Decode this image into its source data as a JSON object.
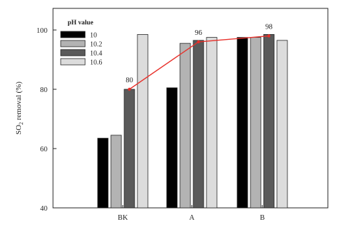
{
  "chart_data": {
    "type": "bar",
    "categories": [
      "BK",
      "A",
      "B"
    ],
    "series": [
      {
        "name": "10",
        "values": [
          63.5,
          80.5,
          97.5
        ],
        "color": "#000000"
      },
      {
        "name": "10.2",
        "values": [
          64.5,
          95.5,
          97.5
        ],
        "color": "#b3b3b3"
      },
      {
        "name": "10.4",
        "values": [
          80,
          96.5,
          98.5
        ],
        "color": "#5a5a5a"
      },
      {
        "name": "10.6",
        "values": [
          98.5,
          97.5,
          96.5
        ],
        "color": "#dcdcdc"
      }
    ],
    "overlay_line": {
      "series_index": 2,
      "values": [
        80,
        96,
        98
      ],
      "labels": [
        "80",
        "96",
        "98"
      ],
      "color": "#e8302a"
    },
    "legend_title": "pH value",
    "legend_position": "top-left",
    "ylabel": "SO2 removal (%)",
    "ylabel_main": "SO",
    "ylabel_sub": "2",
    "ylabel_rest": " removal (%)",
    "xlabel": "",
    "ylim": [
      40,
      110
    ],
    "yticks": [
      40,
      60,
      80,
      100
    ],
    "grid": false
  }
}
